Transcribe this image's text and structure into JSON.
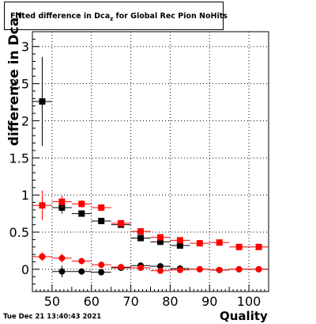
{
  "title": {
    "prefix": "Fitted difference in Dca",
    "subscript": "z",
    "suffix": " for Global Rec Pion NoHits"
  },
  "timestamp": "Tue Dec 21 13:40:43 2021",
  "chart_data": {
    "type": "scatter",
    "xlabel": "Quality",
    "ylabel": "difference in Dca",
    "ylabel_subscript": "z",
    "xlim": [
      45,
      105
    ],
    "ylim": [
      -0.3,
      3.2
    ],
    "x_ticks": [
      50,
      60,
      70,
      80,
      90,
      100
    ],
    "y_ticks": [
      0,
      0.5,
      1,
      1.5,
      2,
      2.5,
      3
    ],
    "y_tick_labels": [
      "0",
      "0.5",
      "1",
      "1.5",
      "2",
      "2.5",
      "3"
    ],
    "grid": true,
    "series": [
      {
        "marker": "square",
        "color": "#000000",
        "points": [
          {
            "x": 47.5,
            "y": 2.26,
            "yerr": 0.6
          },
          {
            "x": 52.5,
            "y": 0.83,
            "yerr": 0.08
          },
          {
            "x": 57.5,
            "y": 0.75,
            "yerr": 0.04
          },
          {
            "x": 62.5,
            "y": 0.65,
            "yerr": 0.03
          },
          {
            "x": 67.5,
            "y": 0.6,
            "yerr": 0.02
          },
          {
            "x": 72.5,
            "y": 0.42,
            "yerr": 0.02
          },
          {
            "x": 77.5,
            "y": 0.37,
            "yerr": 0.02
          },
          {
            "x": 82.5,
            "y": 0.32,
            "yerr": 0.02
          }
        ]
      },
      {
        "marker": "square",
        "color": "#ff0000",
        "points": [
          {
            "x": 47.5,
            "y": 0.86,
            "yerr": 0.2
          },
          {
            "x": 52.5,
            "y": 0.91,
            "yerr": 0.08
          },
          {
            "x": 57.5,
            "y": 0.88,
            "yerr": 0.05
          },
          {
            "x": 62.5,
            "y": 0.83,
            "yerr": 0.04
          },
          {
            "x": 67.5,
            "y": 0.62,
            "yerr": 0.03
          },
          {
            "x": 72.5,
            "y": 0.51,
            "yerr": 0.02
          },
          {
            "x": 77.5,
            "y": 0.43,
            "yerr": 0.02
          },
          {
            "x": 82.5,
            "y": 0.39,
            "yerr": 0.02
          },
          {
            "x": 87.5,
            "y": 0.35,
            "yerr": 0.02
          },
          {
            "x": 92.5,
            "y": 0.36,
            "yerr": 0.02
          },
          {
            "x": 97.5,
            "y": 0.3,
            "yerr": 0.02
          },
          {
            "x": 102.5,
            "y": 0.3,
            "yerr": 0.02
          }
        ]
      },
      {
        "marker": "circle",
        "color": "#000000",
        "points": [
          {
            "x": 47.5,
            "y": 0.17,
            "yerr": 0.05
          },
          {
            "x": 52.5,
            "y": -0.03,
            "yerr": 0.08
          },
          {
            "x": 57.5,
            "y": -0.03,
            "yerr": 0.04
          },
          {
            "x": 62.5,
            "y": -0.04,
            "yerr": 0.03
          },
          {
            "x": 67.5,
            "y": 0.02,
            "yerr": 0.02
          },
          {
            "x": 72.5,
            "y": 0.05,
            "yerr": 0.02
          },
          {
            "x": 77.5,
            "y": 0.04,
            "yerr": 0.02
          },
          {
            "x": 82.5,
            "y": 0.01,
            "yerr": 0.02
          },
          {
            "x": 87.5,
            "y": 0.0,
            "yerr": 0.02
          },
          {
            "x": 92.5,
            "y": -0.01,
            "yerr": 0.02
          },
          {
            "x": 97.5,
            "y": 0.0,
            "yerr": 0.02
          },
          {
            "x": 102.5,
            "y": 0.0,
            "yerr": 0.02
          }
        ]
      },
      {
        "marker": "circle",
        "color": "#ff0000",
        "points": [
          {
            "x": 47.5,
            "y": 0.17,
            "yerr": 0.06
          },
          {
            "x": 52.5,
            "y": 0.15,
            "yerr": 0.06
          },
          {
            "x": 57.5,
            "y": 0.11,
            "yerr": 0.04
          },
          {
            "x": 62.5,
            "y": 0.06,
            "yerr": 0.03
          },
          {
            "x": 67.5,
            "y": 0.03,
            "yerr": 0.02
          },
          {
            "x": 72.5,
            "y": 0.02,
            "yerr": 0.02
          },
          {
            "x": 77.5,
            "y": -0.02,
            "yerr": 0.02
          },
          {
            "x": 82.5,
            "y": -0.01,
            "yerr": 0.02
          },
          {
            "x": 87.5,
            "y": 0.0,
            "yerr": 0.02
          },
          {
            "x": 92.5,
            "y": -0.01,
            "yerr": 0.02
          },
          {
            "x": 97.5,
            "y": 0.0,
            "yerr": 0.02
          },
          {
            "x": 102.5,
            "y": 0.0,
            "yerr": 0.02
          }
        ]
      }
    ]
  }
}
